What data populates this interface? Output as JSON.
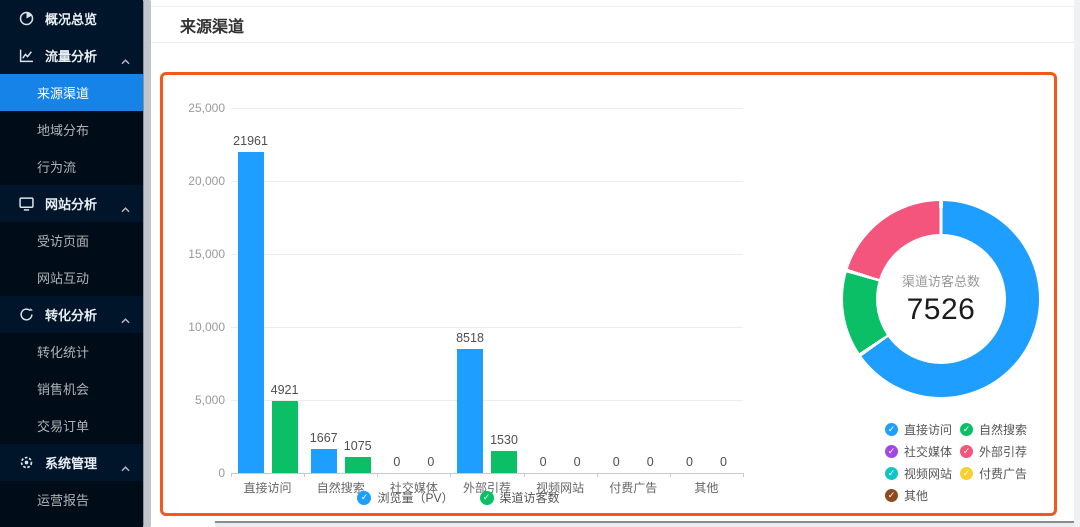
{
  "header": {
    "title": "来源渠道"
  },
  "sidebar": {
    "items": [
      {
        "name": "overview",
        "label": "概况总览",
        "type": "group",
        "icon": "pie-chart-icon",
        "caret": false
      },
      {
        "name": "traffic-analysis",
        "label": "流量分析",
        "type": "group",
        "icon": "line-chart-icon",
        "caret": true
      },
      {
        "name": "source-channel",
        "label": "来源渠道",
        "type": "sub",
        "active": true
      },
      {
        "name": "region-distribution",
        "label": "地域分布",
        "type": "sub"
      },
      {
        "name": "behavior-flow",
        "label": "行为流",
        "type": "sub"
      },
      {
        "name": "website-analysis",
        "label": "网站分析",
        "type": "group",
        "icon": "monitor-icon",
        "caret": true
      },
      {
        "name": "visited-pages",
        "label": "受访页面",
        "type": "sub"
      },
      {
        "name": "website-interaction",
        "label": "网站互动",
        "type": "sub"
      },
      {
        "name": "conversion-analysis",
        "label": "转化分析",
        "type": "group",
        "icon": "sync-icon",
        "caret": true
      },
      {
        "name": "conversion-stats",
        "label": "转化统计",
        "type": "sub"
      },
      {
        "name": "sales-opportunity",
        "label": "销售机会",
        "type": "sub"
      },
      {
        "name": "trade-orders",
        "label": "交易订单",
        "type": "sub"
      },
      {
        "name": "system-management",
        "label": "系统管理",
        "type": "group",
        "icon": "gear-icon",
        "caret": true
      },
      {
        "name": "operation-report",
        "label": "运营报告",
        "type": "sub"
      }
    ]
  },
  "colors": {
    "sidebar_bg": "#001529",
    "submenu_bg": "#000c17",
    "selected_blue": "#1583e8",
    "panel_border_orange": "#f4581c",
    "bar_blue": "#1e9fff",
    "bar_green": "#0bbf67"
  },
  "chart_data": [
    {
      "type": "bar",
      "title": "来源渠道",
      "categories": [
        "直接访问",
        "自然搜索",
        "社交媒体",
        "外部引荐",
        "视频网站",
        "付费广告",
        "其他"
      ],
      "series": [
        {
          "name": "浏览量（PV）",
          "color": "#1e9fff",
          "values": [
            21961,
            1667,
            0,
            8518,
            0,
            0,
            0
          ]
        },
        {
          "name": "渠道访客数",
          "color": "#0bbf67",
          "values": [
            4921,
            1075,
            0,
            1530,
            0,
            0,
            0
          ]
        }
      ],
      "ylim": [
        0,
        25000
      ],
      "yticks": [
        "0",
        "5,000",
        "10,000",
        "15,000",
        "20,000",
        "25,000"
      ],
      "grid": true,
      "legend_position": "bottom"
    },
    {
      "type": "pie",
      "center_label": "渠道访客总数",
      "center_value": "7526",
      "total": 7526,
      "legend_position": "bottom-right",
      "slices": [
        {
          "name": "直接访问",
          "value": 4921,
          "color": "#1e9fff"
        },
        {
          "name": "自然搜索",
          "value": 1075,
          "color": "#0bbf67"
        },
        {
          "name": "社交媒体",
          "value": 0,
          "color": "#a348e8"
        },
        {
          "name": "外部引荐",
          "value": 1530,
          "color": "#f4557d"
        },
        {
          "name": "视频网站",
          "value": 0,
          "color": "#12c5c5"
        },
        {
          "name": "付费广告",
          "value": 0,
          "color": "#fbce30"
        },
        {
          "name": "其他",
          "value": 0,
          "color": "#8d4a21"
        }
      ]
    }
  ]
}
